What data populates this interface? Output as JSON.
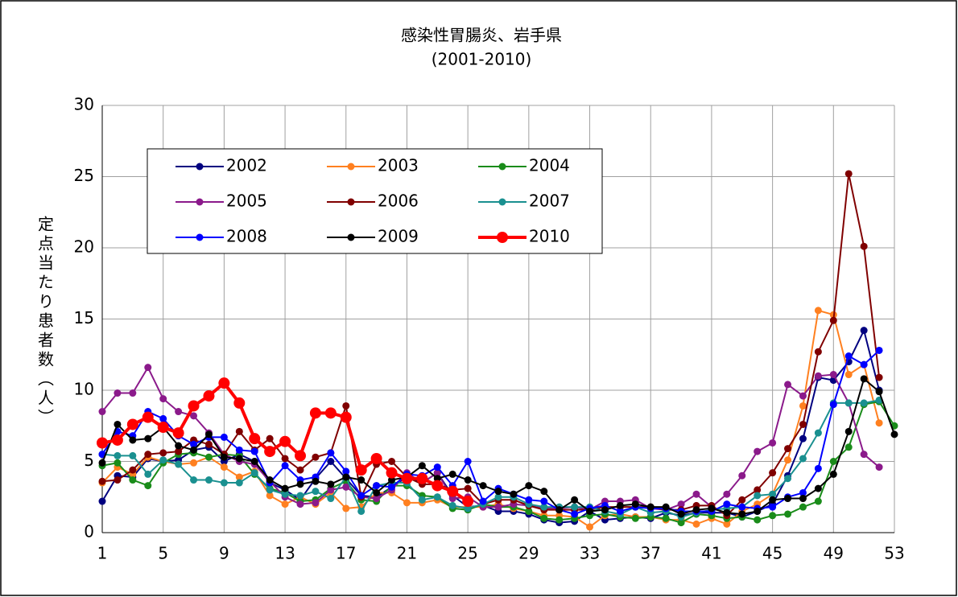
{
  "chart_data": {
    "type": "line",
    "title": "感染性胃腸炎、岩手県",
    "subtitle": "(2001-2010)",
    "y_label": "定点当たり患者数（人）",
    "x": [
      1,
      2,
      3,
      4,
      5,
      6,
      7,
      8,
      9,
      10,
      11,
      12,
      13,
      14,
      15,
      16,
      17,
      18,
      19,
      20,
      21,
      22,
      23,
      24,
      25,
      26,
      27,
      28,
      29,
      30,
      31,
      32,
      33,
      34,
      35,
      36,
      37,
      38,
      39,
      40,
      41,
      42,
      43,
      44,
      45,
      46,
      47,
      48,
      49,
      50,
      51,
      52,
      53
    ],
    "xlim": [
      1,
      53
    ],
    "xticks": [
      1,
      5,
      9,
      13,
      17,
      21,
      25,
      29,
      33,
      37,
      41,
      45,
      49,
      53
    ],
    "ylim": [
      0,
      30
    ],
    "yticks": [
      0,
      5,
      10,
      15,
      20,
      25,
      30
    ],
    "grid": true,
    "legend": "upper left",
    "series": [
      {
        "name": "2002",
        "color": "#000080",
        "values": [
          2.2,
          4.0,
          3.9,
          5.2,
          5.0,
          5.1,
          5.8,
          6.0,
          5.0,
          5.5,
          5.0,
          3.5,
          3.0,
          2.3,
          3.8,
          5.0,
          3.8,
          2.6,
          2.5,
          3.2,
          3.9,
          3.5,
          4.2,
          2.6,
          1.8,
          1.9,
          1.5,
          1.5,
          1.3,
          0.9,
          0.7,
          0.8,
          1.5,
          0.9,
          1.0,
          1.1,
          1.0,
          1.4,
          1.2,
          1.4,
          1.4,
          1.4,
          1.1,
          1.5,
          2.0,
          4.0,
          6.6,
          10.9,
          10.7,
          12.0,
          14.2,
          10.0,
          null
        ]
      },
      {
        "name": "2003",
        "color": "#ff8020",
        "values": [
          3.5,
          4.6,
          4.1,
          5.3,
          5.0,
          4.8,
          4.9,
          5.3,
          4.6,
          3.9,
          4.3,
          2.6,
          2.0,
          2.5,
          2.0,
          2.8,
          1.7,
          1.8,
          2.8,
          2.8,
          2.1,
          2.1,
          2.3,
          1.8,
          1.8,
          1.8,
          2.0,
          1.7,
          1.5,
          1.2,
          1.2,
          1.1,
          0.4,
          1.2,
          1.3,
          1.1,
          1.1,
          0.9,
          0.9,
          0.6,
          1.0,
          0.6,
          1.5,
          2.0,
          2.7,
          5.1,
          8.9,
          15.6,
          15.3,
          11.1,
          11.8,
          7.7,
          null
        ]
      },
      {
        "name": "2004",
        "color": "#1a8c1a",
        "values": [
          4.7,
          4.9,
          3.7,
          3.3,
          4.9,
          5.5,
          5.6,
          5.3,
          5.5,
          5.4,
          4.1,
          3.1,
          2.8,
          2.2,
          2.3,
          3.1,
          3.6,
          2.3,
          2.2,
          3.3,
          3.3,
          2.6,
          2.5,
          1.7,
          1.6,
          2.0,
          1.8,
          1.8,
          1.5,
          1.0,
          0.9,
          1.0,
          1.2,
          1.3,
          1.1,
          1.0,
          1.1,
          1.0,
          0.7,
          1.3,
          1.2,
          1.0,
          1.1,
          0.9,
          1.2,
          1.3,
          1.8,
          2.2,
          5.0,
          6.0,
          9.0,
          9.2,
          7.5
        ]
      },
      {
        "name": "2005",
        "color": "#8b1a8b",
        "values": [
          8.5,
          9.8,
          9.8,
          11.6,
          9.4,
          8.5,
          8.2,
          7.0,
          5.5,
          5.0,
          4.8,
          3.6,
          2.5,
          2.0,
          2.1,
          3.0,
          3.2,
          2.5,
          2.4,
          3.0,
          4.2,
          3.5,
          4.2,
          2.4,
          2.5,
          1.8,
          1.8,
          2.0,
          1.9,
          1.7,
          1.7,
          1.8,
          1.6,
          2.2,
          2.2,
          2.3,
          1.7,
          1.6,
          2.0,
          2.7,
          1.8,
          2.7,
          4.0,
          5.7,
          6.3,
          10.4,
          9.6,
          11.0,
          11.1,
          9.1,
          5.5,
          4.6,
          null
        ]
      },
      {
        "name": "2006",
        "color": "#800000",
        "values": [
          3.6,
          3.7,
          4.4,
          5.5,
          5.6,
          5.7,
          6.5,
          6.2,
          5.5,
          7.1,
          5.8,
          6.6,
          5.2,
          4.4,
          5.3,
          5.6,
          8.9,
          2.5,
          4.8,
          5.0,
          3.9,
          3.4,
          3.4,
          3.0,
          3.1,
          2.0,
          2.3,
          2.3,
          1.9,
          1.6,
          1.6,
          1.6,
          1.6,
          1.8,
          1.8,
          1.8,
          1.8,
          1.6,
          1.6,
          1.9,
          1.9,
          1.2,
          2.3,
          3.0,
          4.2,
          5.9,
          7.6,
          12.7,
          14.9,
          25.2,
          20.1,
          10.9,
          null
        ]
      },
      {
        "name": "2007",
        "color": "#1a9090",
        "values": [
          5.5,
          5.4,
          5.4,
          4.1,
          5.1,
          4.8,
          3.7,
          3.7,
          3.5,
          3.5,
          4.2,
          3.0,
          2.7,
          2.6,
          2.9,
          2.4,
          3.9,
          1.5,
          3.3,
          3.5,
          3.5,
          2.3,
          2.5,
          1.9,
          1.7,
          2.0,
          2.5,
          2.5,
          2.0,
          1.8,
          1.8,
          1.8,
          1.8,
          1.5,
          1.3,
          1.8,
          1.4,
          1.5,
          1.1,
          1.4,
          1.6,
          1.7,
          1.8,
          2.6,
          2.7,
          3.8,
          5.2,
          7.0,
          9.1,
          9.1,
          9.1,
          9.3,
          null
        ]
      },
      {
        "name": "2008",
        "color": "#0000ff",
        "values": [
          5.5,
          7.1,
          6.8,
          8.5,
          8.0,
          6.8,
          6.2,
          6.7,
          6.7,
          5.8,
          5.7,
          3.5,
          4.7,
          3.7,
          3.9,
          5.6,
          4.3,
          2.6,
          3.3,
          3.2,
          4.1,
          4.0,
          4.6,
          3.3,
          5.0,
          2.2,
          3.1,
          2.7,
          2.3,
          2.2,
          1.6,
          1.3,
          1.7,
          1.9,
          1.5,
          1.8,
          1.7,
          1.7,
          1.5,
          1.5,
          1.5,
          2.0,
          1.8,
          1.7,
          1.8,
          2.5,
          2.8,
          4.5,
          9.0,
          12.4,
          11.8,
          12.8,
          null
        ]
      },
      {
        "name": "2009",
        "color": "#000000",
        "values": [
          4.9,
          7.6,
          6.5,
          6.6,
          7.4,
          6.1,
          5.8,
          6.9,
          5.3,
          5.2,
          5.0,
          3.7,
          3.1,
          3.4,
          3.6,
          3.4,
          3.9,
          3.7,
          2.8,
          3.7,
          3.9,
          4.7,
          3.8,
          4.1,
          3.7,
          3.3,
          2.9,
          2.7,
          3.3,
          2.9,
          1.6,
          2.3,
          1.5,
          1.6,
          1.9,
          2.0,
          1.8,
          1.8,
          1.3,
          1.6,
          1.7,
          1.4,
          1.3,
          1.5,
          2.3,
          2.4,
          2.4,
          3.1,
          4.1,
          7.1,
          10.8,
          9.9,
          6.9
        ]
      },
      {
        "name": "2010",
        "color": "#ff0000",
        "bold": true,
        "values": [
          6.3,
          6.5,
          7.6,
          8.1,
          7.4,
          7.0,
          8.9,
          9.6,
          10.5,
          9.1,
          6.6,
          5.7,
          6.4,
          5.4,
          8.4,
          8.4,
          8.1,
          4.4,
          5.2,
          4.2,
          3.8,
          3.8,
          3.3,
          2.9,
          2.2,
          null,
          null,
          null,
          null,
          null,
          null,
          null,
          null,
          null,
          null,
          null,
          null,
          null,
          null,
          null,
          null,
          null,
          null,
          null,
          null,
          null,
          null,
          null,
          null,
          null,
          null,
          null,
          null
        ]
      }
    ]
  }
}
